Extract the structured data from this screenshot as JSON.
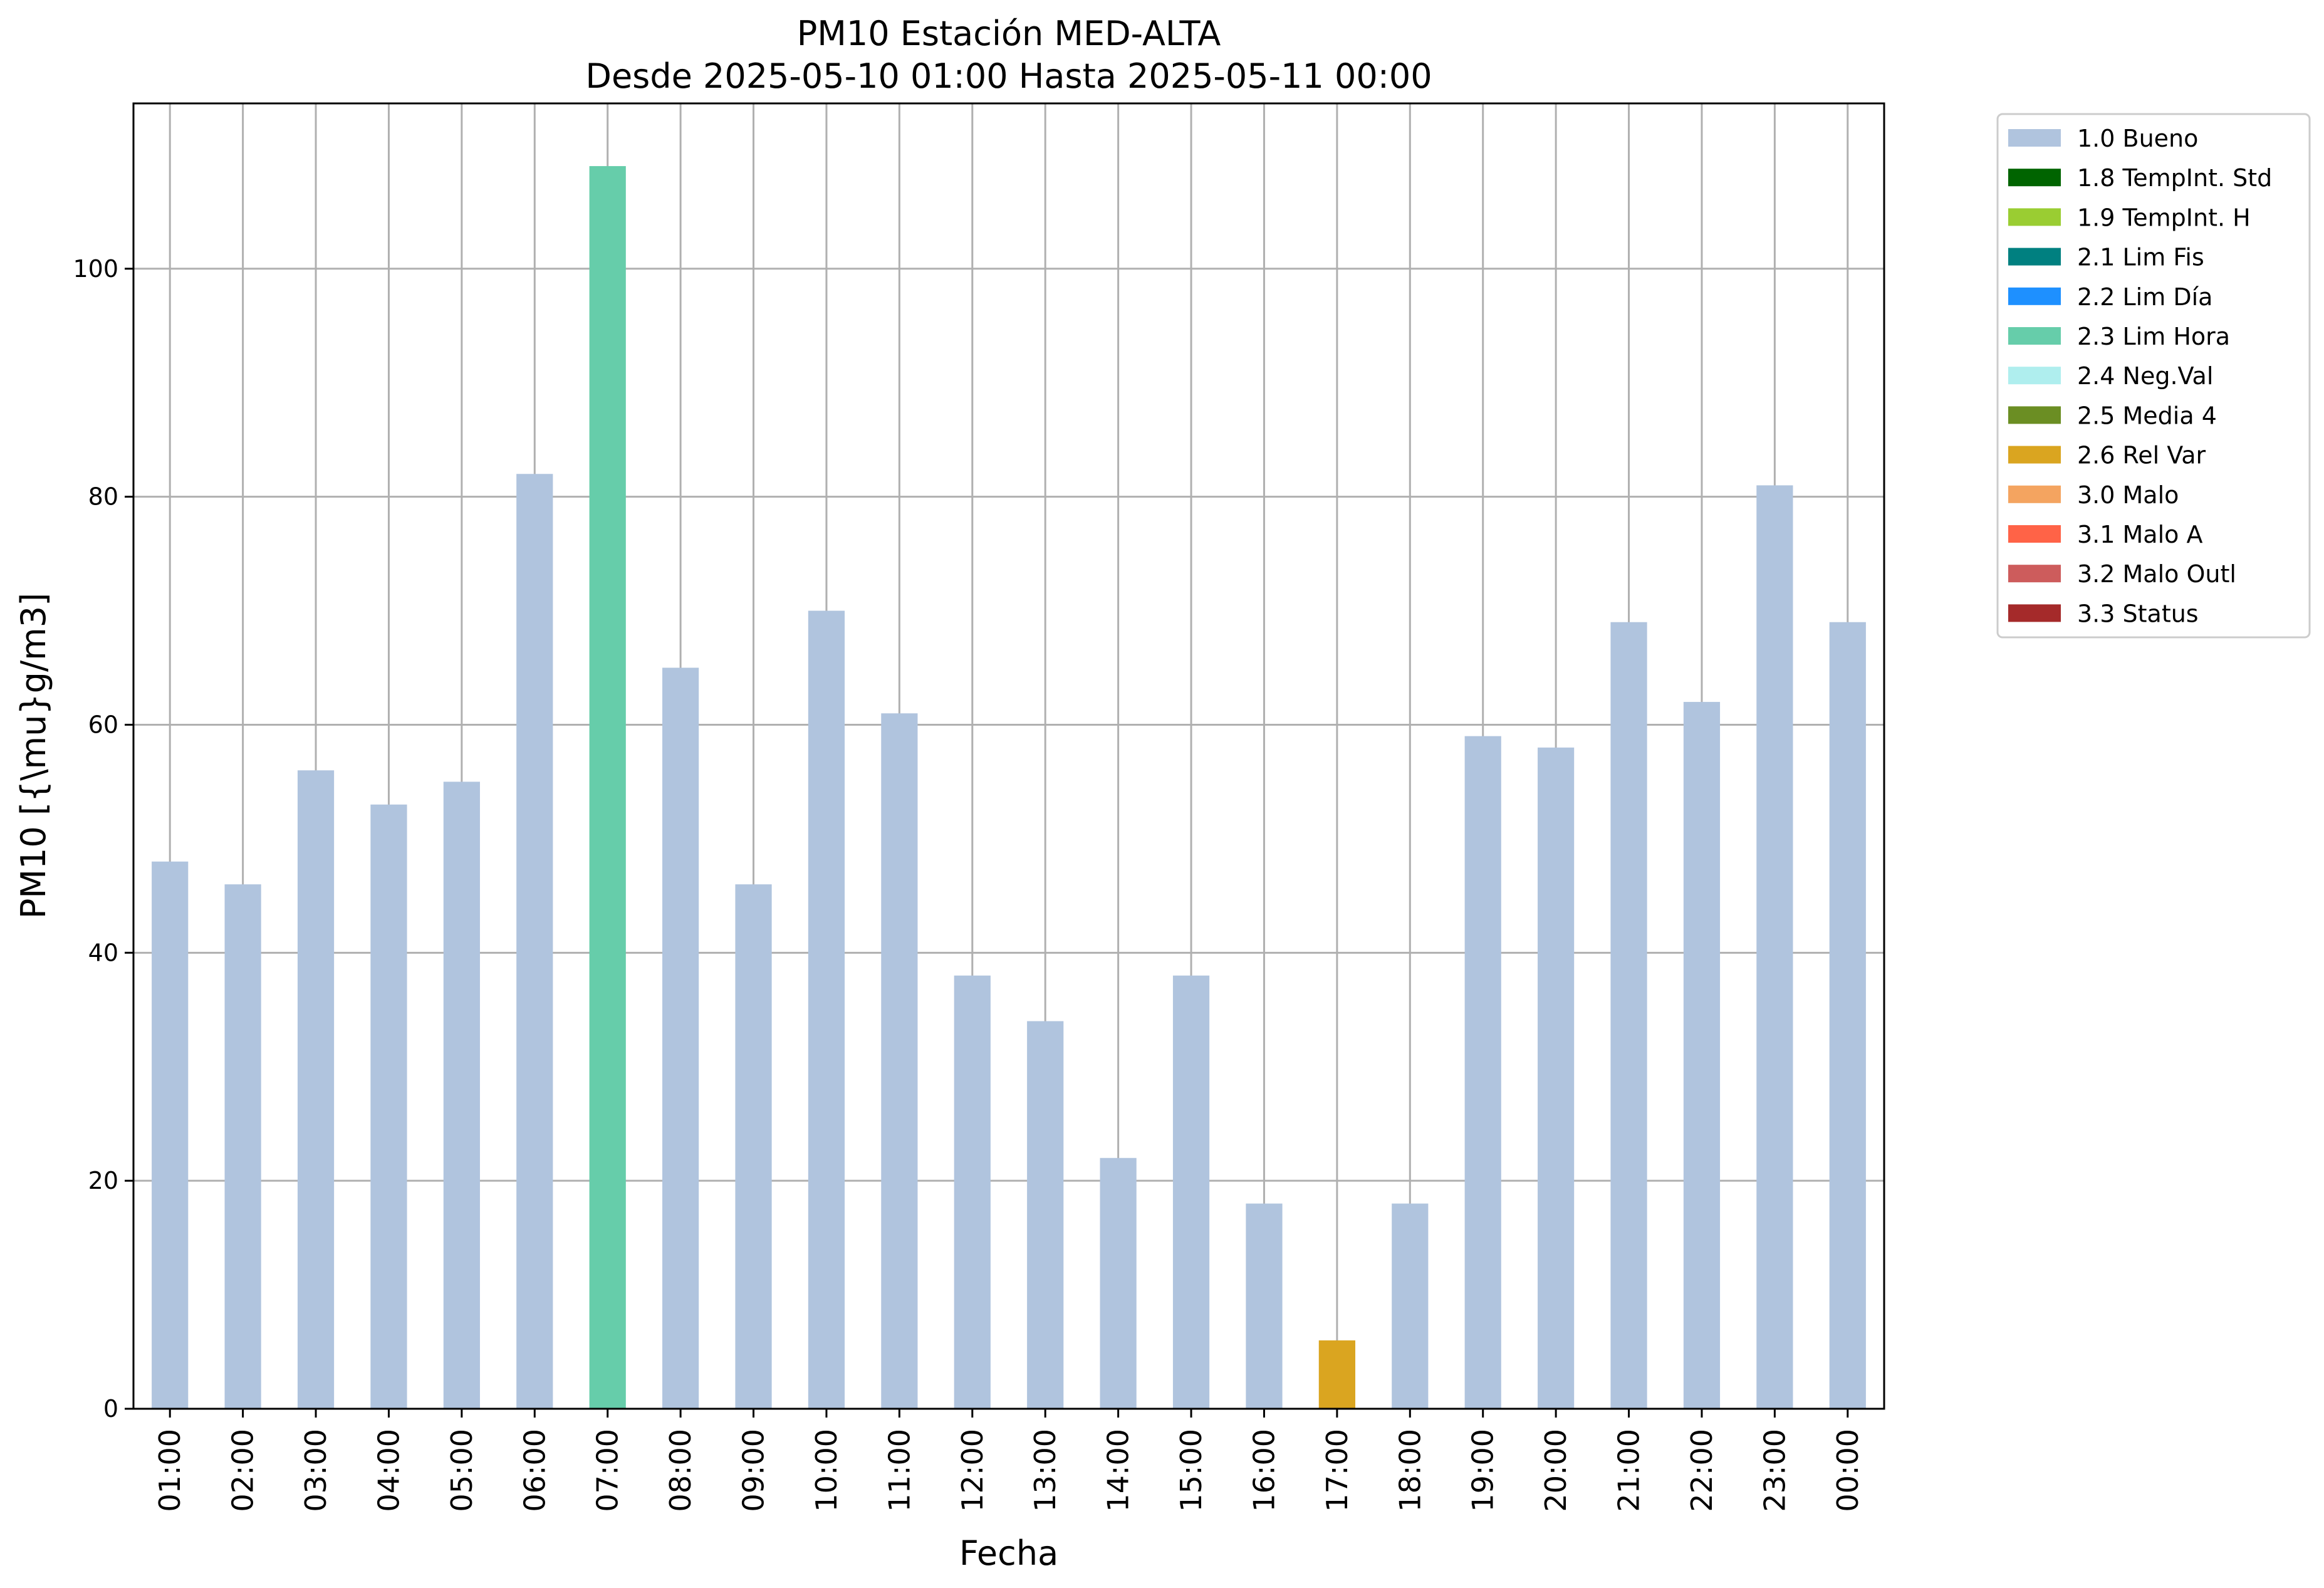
{
  "chart_data": {
    "type": "bar",
    "title": "PM10 Estación MED-ALTA",
    "subtitle": "Desde 2025-05-10 01:00 Hasta 2025-05-11 00:00",
    "xlabel": "Fecha",
    "ylabel": "PM10 [{\\mu}g/m3]",
    "ylim": [
      0,
      114.5
    ],
    "yticks": [
      0,
      20,
      40,
      60,
      80,
      100
    ],
    "grid": true,
    "legend_position": "outside right, top",
    "categories": [
      "01:00",
      "02:00",
      "03:00",
      "04:00",
      "05:00",
      "06:00",
      "07:00",
      "08:00",
      "09:00",
      "10:00",
      "11:00",
      "12:00",
      "13:00",
      "14:00",
      "15:00",
      "16:00",
      "17:00",
      "18:00",
      "19:00",
      "20:00",
      "21:00",
      "22:00",
      "23:00",
      "00:00"
    ],
    "values": [
      48,
      46,
      56,
      53,
      55,
      82,
      109,
      65,
      46,
      70,
      61,
      38,
      34,
      22,
      38,
      18,
      6,
      18,
      59,
      58,
      69,
      62,
      81,
      69
    ],
    "flags": [
      "1.0 Bueno",
      "1.0 Bueno",
      "1.0 Bueno",
      "1.0 Bueno",
      "1.0 Bueno",
      "1.0 Bueno",
      "2.3 Lim Hora",
      "1.0 Bueno",
      "1.0 Bueno",
      "1.0 Bueno",
      "1.0 Bueno",
      "1.0 Bueno",
      "1.0 Bueno",
      "1.0 Bueno",
      "1.0 Bueno",
      "1.0 Bueno",
      "2.6 Rel Var",
      "1.0 Bueno",
      "1.0 Bueno",
      "1.0 Bueno",
      "1.0 Bueno",
      "1.0 Bueno",
      "1.0 Bueno",
      "1.0 Bueno"
    ],
    "legend": [
      {
        "label": "1.0 Bueno",
        "color": "#b0c4de"
      },
      {
        "label": "1.8 TempInt. Std",
        "color": "#006400"
      },
      {
        "label": "1.9 TempInt. H",
        "color": "#9acd32"
      },
      {
        "label": "2.1 Lim Fis",
        "color": "#008080"
      },
      {
        "label": "2.2 Lim Día",
        "color": "#1e90ff"
      },
      {
        "label": "2.3 Lim Hora",
        "color": "#66cdaa"
      },
      {
        "label": "2.4 Neg.Val",
        "color": "#afeeee"
      },
      {
        "label": "2.5 Media 4",
        "color": "#6b8e23"
      },
      {
        "label": "2.6 Rel Var",
        "color": "#daa520"
      },
      {
        "label": "3.0 Malo",
        "color": "#f4a460"
      },
      {
        "label": "3.1 Malo A",
        "color": "#ff6347"
      },
      {
        "label": "3.2 Malo Outl",
        "color": "#cd5c5c"
      },
      {
        "label": "3.3 Status",
        "color": "#a52a2a"
      }
    ]
  }
}
